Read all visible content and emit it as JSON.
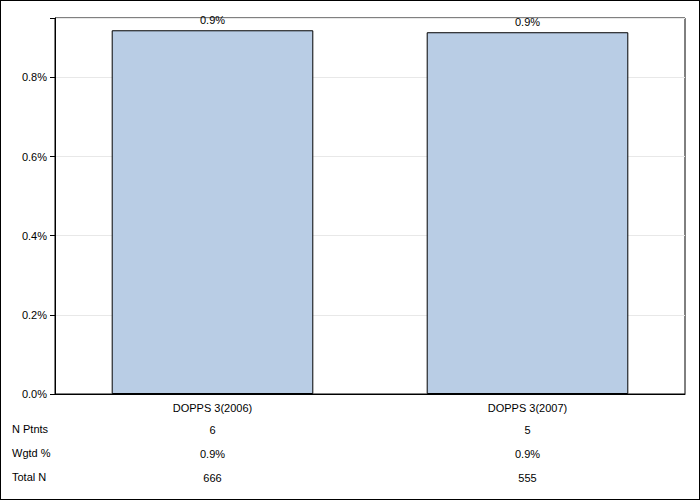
{
  "chart_data": {
    "type": "bar",
    "categories": [
      "DOPPS 3(2006)",
      "DOPPS 3(2007)"
    ],
    "values": [
      0.919,
      0.914
    ],
    "value_labels": [
      "0.9%",
      "0.9%"
    ],
    "data_labels": true,
    "color": "#b9cde5",
    "ylim": [
      0,
      0.95
    ],
    "yticks": [
      {
        "value": 0,
        "label": "0.0%"
      },
      {
        "value": 0.2,
        "label": "0.2%"
      },
      {
        "value": 0.4,
        "label": "0.4%"
      },
      {
        "value": 0.6,
        "label": "0.6%"
      },
      {
        "value": 0.8,
        "label": "0.8%"
      }
    ],
    "grid": true,
    "table": {
      "rows": [
        {
          "label": "N Ptnts",
          "cells": [
            "6",
            "5"
          ]
        },
        {
          "label": "Wgtd %",
          "cells": [
            "0.9%",
            "0.9%"
          ]
        },
        {
          "label": "Total N",
          "cells": [
            "666",
            "555"
          ]
        }
      ]
    }
  }
}
